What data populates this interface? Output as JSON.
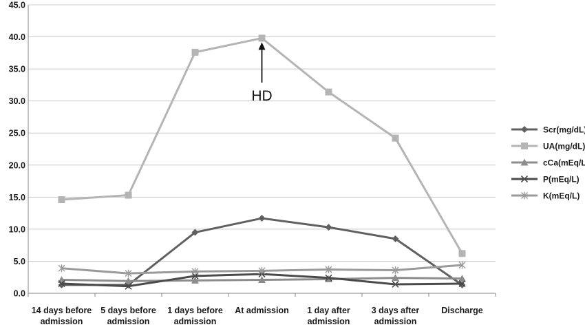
{
  "chart_data": {
    "type": "line",
    "categories": [
      [
        "14 days before",
        "admission"
      ],
      [
        "5 days before",
        "admission"
      ],
      [
        "1 days before",
        "admission"
      ],
      [
        "At admission"
      ],
      [
        "1 day after",
        "admission"
      ],
      [
        "3 days after",
        "admission"
      ],
      [
        "Discharge"
      ]
    ],
    "ylim": [
      0,
      45
    ],
    "yticks": [
      "0.0",
      "5.0",
      "10.0",
      "15.0",
      "20.0",
      "25.0",
      "30.0",
      "35.0",
      "40.0",
      "45.0"
    ],
    "grid": true,
    "legend_position": "right",
    "series": [
      {
        "name": "Scr(mg/dL)",
        "marker": "diamond",
        "color": "#606060",
        "values": [
          1.3,
          1.3,
          9.5,
          11.7,
          10.3,
          8.5,
          1.3
        ]
      },
      {
        "name": "UA(mg/dL)",
        "marker": "square",
        "color": "#b4b4b4",
        "values": [
          14.6,
          15.3,
          37.6,
          39.8,
          31.4,
          24.2,
          6.2
        ]
      },
      {
        "name": "cCa(mEq/L)",
        "marker": "triangle",
        "color": "#8c8c8c",
        "values": [
          2.1,
          1.9,
          2.0,
          2.1,
          2.2,
          2.4,
          2.3
        ]
      },
      {
        "name": "P(mEq/L)",
        "marker": "x",
        "color": "#4a4a4a",
        "values": [
          1.5,
          1.1,
          2.7,
          3.0,
          2.4,
          1.4,
          1.5
        ]
      },
      {
        "name": "K(mEq/L)",
        "marker": "star",
        "color": "#9a9a9a",
        "values": [
          3.9,
          3.1,
          3.4,
          3.5,
          3.7,
          3.6,
          4.4
        ]
      }
    ],
    "annotations": [
      {
        "text": "HD",
        "category_index": 3,
        "arrow_to_series": "UA(mg/dL)"
      }
    ]
  }
}
